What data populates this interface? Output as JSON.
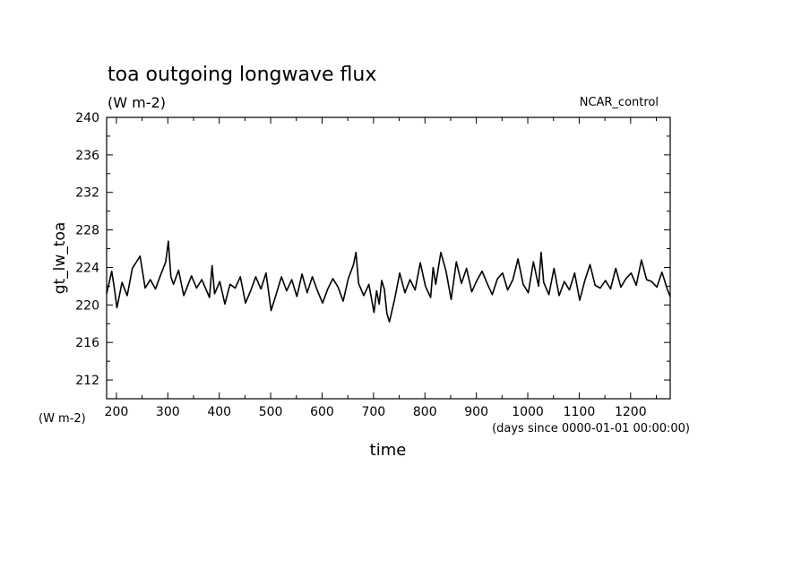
{
  "chart_data": {
    "type": "line",
    "title": "toa outgoing longwave flux",
    "subtitle": "(W m-2)",
    "label_right": "NCAR_control",
    "xlabel": "time",
    "xunits": "(days since 0000-01-01 00:00:00)",
    "ylabel": "gt_lw_toa",
    "yunits": "(W m-2)",
    "xlim": [
      181,
      1277
    ],
    "ylim": [
      210,
      240
    ],
    "x_ticks": [
      200,
      300,
      400,
      500,
      600,
      700,
      800,
      900,
      1000,
      1100,
      1200
    ],
    "y_ticks": [
      212,
      216,
      220,
      224,
      228,
      232,
      236,
      240
    ],
    "grid": false,
    "series": [
      {
        "color": "#000000",
        "x": [
          181,
          191,
          196,
          201,
          211,
          221,
          231,
          246,
          251,
          256,
          266,
          276,
          286,
          296,
          301,
          306,
          311,
          321,
          331,
          346,
          356,
          366,
          381,
          386,
          391,
          401,
          411,
          421,
          431,
          441,
          451,
          461,
          471,
          481,
          491,
          501,
          511,
          521,
          531,
          541,
          551,
          561,
          571,
          581,
          591,
          601,
          611,
          621,
          631,
          641,
          651,
          661,
          666,
          671,
          681,
          691,
          701,
          706,
          711,
          716,
          721,
          726,
          731,
          741,
          751,
          761,
          771,
          781,
          791,
          801,
          811,
          816,
          821,
          831,
          841,
          851,
          861,
          871,
          881,
          891,
          901,
          911,
          921,
          931,
          941,
          951,
          961,
          971,
          981,
          991,
          1001,
          1011,
          1021,
          1026,
          1031,
          1041,
          1051,
          1061,
          1071,
          1081,
          1091,
          1101,
          1111,
          1121,
          1131,
          1141,
          1151,
          1161,
          1171,
          1181,
          1191,
          1201,
          1211,
          1221,
          1231,
          1241,
          1251,
          1261,
          1271,
          1277
        ],
        "y": [
          221.2,
          223.6,
          221.8,
          219.7,
          222.4,
          221.0,
          223.9,
          225.2,
          223.5,
          221.8,
          222.7,
          221.7,
          223.2,
          224.6,
          226.8,
          223.0,
          222.2,
          223.7,
          221.0,
          223.1,
          221.8,
          222.7,
          220.8,
          224.2,
          221.2,
          222.5,
          220.1,
          222.2,
          221.8,
          223.0,
          220.2,
          221.5,
          223.0,
          221.7,
          223.4,
          219.4,
          221.2,
          223.0,
          221.5,
          222.7,
          220.9,
          223.3,
          221.3,
          223.0,
          221.5,
          220.2,
          221.7,
          222.8,
          221.9,
          220.4,
          222.8,
          224.3,
          225.6,
          222.3,
          221.0,
          222.2,
          219.2,
          221.5,
          220.1,
          222.6,
          221.7,
          219.1,
          218.2,
          220.6,
          223.4,
          221.3,
          222.7,
          221.6,
          224.5,
          222.0,
          220.8,
          224.0,
          222.2,
          225.6,
          223.6,
          220.6,
          224.6,
          222.3,
          223.9,
          221.4,
          222.6,
          223.6,
          222.3,
          221.1,
          222.8,
          223.4,
          221.6,
          222.7,
          224.9,
          222.2,
          221.3,
          224.6,
          222.0,
          225.6,
          222.4,
          221.1,
          223.9,
          221.0,
          222.5,
          221.6,
          223.4,
          220.5,
          222.6,
          224.3,
          222.1,
          221.8,
          222.6,
          221.7,
          223.9,
          221.9,
          222.8,
          223.4,
          222.1,
          224.8,
          222.7,
          222.5,
          221.9,
          223.5,
          221.7,
          220.9
        ]
      }
    ]
  }
}
